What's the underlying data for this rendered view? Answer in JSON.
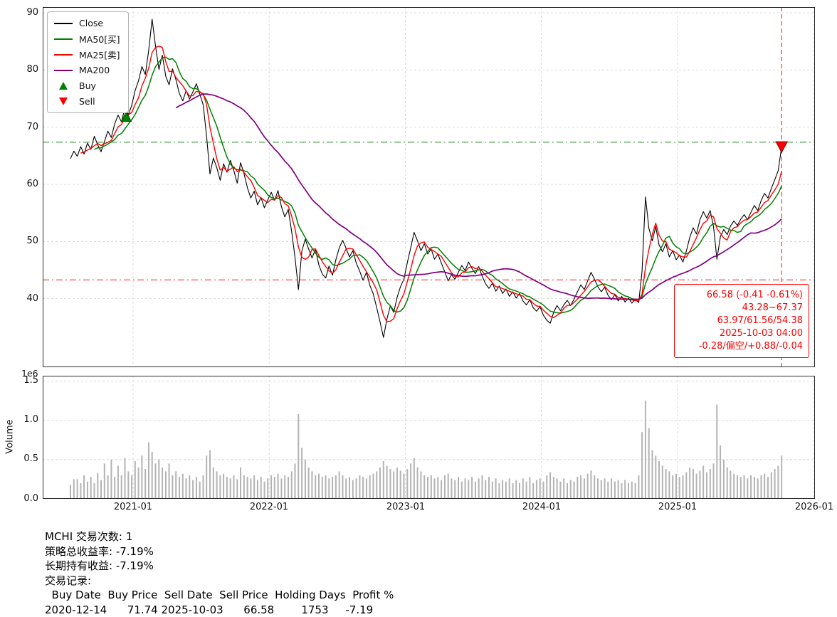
{
  "chart_data": {
    "type": "line",
    "symbol": "MCHI",
    "x_start": 2020.54,
    "x_step": 0.025,
    "xlim": [
      2020.336,
      2026.01
    ],
    "ylim": [
      28,
      91
    ],
    "x_ticks": [
      "2021-01",
      "2022-01",
      "2023-01",
      "2024-01",
      "2025-01",
      "2026-01"
    ],
    "x_tick_years": [
      2021,
      2022,
      2023,
      2024,
      2025,
      2026
    ],
    "y_ticks": [
      "90",
      "80",
      "70",
      "60",
      "50",
      "40"
    ],
    "y_tick_values": [
      90,
      80,
      70,
      60,
      50,
      40
    ],
    "close": [
      64.5,
      65.8,
      64.9,
      66.6,
      65.3,
      67.2,
      66.1,
      68.4,
      66.9,
      65.7,
      67.5,
      69.3,
      68.2,
      70.6,
      72.1,
      70.9,
      73.4,
      72.2,
      73.8,
      76.4,
      78.1,
      80.6,
      79.2,
      83.5,
      88.9,
      84.2,
      80.1,
      82.6,
      78.9,
      77.4,
      80.2,
      78.3,
      75.9,
      74.6,
      76.4,
      74.9,
      76.2,
      77.6,
      75.8,
      73.9,
      68.5,
      61.8,
      64.6,
      62.9,
      60.7,
      63.6,
      62.1,
      64.2,
      62.4,
      60.2,
      63.8,
      61.9,
      59.4,
      57.6,
      58.8,
      56.4,
      57.7,
      55.9,
      57.3,
      58.6,
      57.2,
      58.9,
      56.1,
      54.3,
      55.6,
      51.8,
      47.2,
      41.6,
      48.3,
      50.4,
      48.7,
      47.1,
      48.6,
      45.9,
      44.3,
      43.6,
      45.7,
      44.1,
      46.8,
      48.9,
      50.2,
      48.8,
      47.3,
      48.4,
      46.2,
      44.8,
      43.2,
      44.6,
      42.3,
      40.8,
      38.4,
      35.9,
      33.2,
      36.4,
      38.7,
      37.6,
      40.2,
      42.1,
      43.4,
      46.3,
      48.9,
      51.6,
      50.1,
      48.4,
      49.6,
      47.8,
      48.7,
      46.9,
      47.8,
      46.2,
      44.7,
      43.1,
      44.2,
      43.4,
      44.6,
      45.8,
      44.9,
      46.4,
      45.3,
      44.4,
      45.6,
      43.9,
      42.6,
      41.8,
      42.7,
      41.3,
      42.2,
      40.9,
      41.7,
      40.4,
      41.2,
      40.1,
      40.9,
      39.6,
      38.9,
      39.8,
      38.4,
      37.8,
      38.6,
      37.1,
      36.2,
      35.7,
      37.6,
      38.8,
      37.9,
      38.9,
      39.7,
      38.8,
      39.9,
      41.2,
      42.4,
      41.6,
      43.1,
      44.6,
      43.4,
      42.1,
      41.2,
      42.0,
      40.6,
      39.8,
      40.7,
      39.6,
      40.4,
      39.4,
      40.1,
      39.2,
      39.9,
      39.3,
      44.8,
      57.8,
      52.3,
      50.1,
      52.6,
      49.4,
      48.2,
      49.6,
      47.3,
      48.4,
      46.8,
      47.6,
      46.4,
      48.3,
      50.7,
      52.4,
      51.3,
      53.8,
      55.2,
      54.1,
      55.4,
      52.6,
      46.9,
      50.8,
      52.1,
      51.2,
      52.7,
      53.6,
      52.8,
      53.9,
      54.7,
      53.8,
      55.1,
      56.3,
      55.4,
      57.2,
      58.4,
      57.6,
      59.3,
      60.8,
      62.4,
      66.58
    ],
    "volume": [
      0.18,
      0.25,
      0.25,
      0.2,
      0.3,
      0.22,
      0.28,
      0.2,
      0.33,
      0.24,
      0.45,
      0.3,
      0.5,
      0.28,
      0.42,
      0.3,
      0.52,
      0.35,
      0.3,
      0.48,
      0.4,
      0.55,
      0.38,
      0.72,
      0.6,
      0.45,
      0.5,
      0.4,
      0.35,
      0.45,
      0.3,
      0.35,
      0.28,
      0.32,
      0.26,
      0.3,
      0.24,
      0.28,
      0.22,
      0.3,
      0.55,
      0.62,
      0.4,
      0.35,
      0.3,
      0.32,
      0.28,
      0.26,
      0.3,
      0.25,
      0.4,
      0.3,
      0.28,
      0.26,
      0.3,
      0.24,
      0.28,
      0.22,
      0.26,
      0.3,
      0.28,
      0.32,
      0.26,
      0.3,
      0.28,
      0.35,
      0.45,
      1.08,
      0.65,
      0.5,
      0.4,
      0.35,
      0.3,
      0.32,
      0.28,
      0.3,
      0.26,
      0.28,
      0.3,
      0.35,
      0.3,
      0.26,
      0.28,
      0.24,
      0.26,
      0.3,
      0.28,
      0.26,
      0.3,
      0.32,
      0.35,
      0.4,
      0.48,
      0.42,
      0.38,
      0.35,
      0.4,
      0.36,
      0.32,
      0.38,
      0.45,
      0.52,
      0.4,
      0.35,
      0.3,
      0.28,
      0.3,
      0.26,
      0.28,
      0.24,
      0.3,
      0.32,
      0.26,
      0.24,
      0.28,
      0.22,
      0.26,
      0.24,
      0.28,
      0.22,
      0.26,
      0.3,
      0.24,
      0.28,
      0.22,
      0.26,
      0.2,
      0.24,
      0.22,
      0.26,
      0.2,
      0.24,
      0.2,
      0.26,
      0.22,
      0.28,
      0.2,
      0.24,
      0.26,
      0.22,
      0.3,
      0.34,
      0.28,
      0.26,
      0.22,
      0.26,
      0.2,
      0.24,
      0.22,
      0.28,
      0.3,
      0.26,
      0.32,
      0.36,
      0.3,
      0.26,
      0.24,
      0.26,
      0.22,
      0.26,
      0.22,
      0.24,
      0.2,
      0.24,
      0.2,
      0.22,
      0.2,
      0.3,
      0.85,
      1.25,
      0.9,
      0.62,
      0.55,
      0.48,
      0.42,
      0.38,
      0.35,
      0.3,
      0.32,
      0.28,
      0.3,
      0.34,
      0.4,
      0.38,
      0.32,
      0.36,
      0.42,
      0.34,
      0.38,
      0.45,
      1.2,
      0.68,
      0.5,
      0.4,
      0.36,
      0.32,
      0.3,
      0.28,
      0.3,
      0.26,
      0.3,
      0.28,
      0.26,
      0.3,
      0.32,
      0.28,
      0.34,
      0.38,
      0.42,
      0.55
    ],
    "volume_ylim": [
      0,
      1.567
    ],
    "volume_ticks": [
      "1.5",
      "1.0",
      "0.5",
      "0.0"
    ],
    "volume_tick_values": [
      1.5,
      1.0,
      0.5,
      0.0
    ],
    "volume_offset_label": "1e6",
    "volume_ylabel": "Volume",
    "series": [
      {
        "name": "Close",
        "color": "#000000"
      },
      {
        "name": "MA50[买]",
        "color": "#008000",
        "window_points": 8
      },
      {
        "name": "MA25[卖]",
        "color": "#ff0000",
        "window_points": 4
      },
      {
        "name": "MA200",
        "color": "#800080",
        "window_points": 32
      }
    ],
    "legend": [
      {
        "label": "Close",
        "color": "#000000",
        "type": "line"
      },
      {
        "label": "MA50[买]",
        "color": "#008000",
        "type": "line"
      },
      {
        "label": "MA25[卖]",
        "color": "#ff0000",
        "type": "line"
      },
      {
        "label": "MA200",
        "color": "#800080",
        "type": "line"
      },
      {
        "label": "Buy",
        "color": "#008000",
        "type": "marker-up"
      },
      {
        "label": "Sell",
        "color": "#ff0000",
        "type": "marker-down"
      }
    ],
    "hlines": [
      {
        "value": 67.37,
        "color": "#008000",
        "style": "dashdot"
      },
      {
        "value": 43.28,
        "color": "#ff0000",
        "style": "dashdot"
      }
    ],
    "vline": {
      "x": 2025.765,
      "color": "#ff0000",
      "style": "dashed"
    },
    "markers": {
      "buy": {
        "x": 2020.95,
        "y": 71.74
      },
      "sell": {
        "x": 2025.765,
        "y": 66.58
      }
    },
    "annotation": {
      "lines": [
        "66.58 (-0.41 -0.61%)",
        "43.28~67.37",
        "63.97/61.56/54.38",
        "2025-10-03 04:00",
        "-0.28/偏空/+0.88/-0.04"
      ]
    }
  },
  "summary": {
    "line1": "MCHI 交易次数: 1",
    "line2": "策略总收益率: -7.19%",
    "line3": "长期持有收益: -7.19%",
    "line4": "交易记录:",
    "table_header": "  Buy Date  Buy Price  Sell Date  Sell Price  Holding Days  Profit %",
    "table_row": "2020-12-14      71.74 2025-10-03      66.58        1753     -7.19"
  }
}
